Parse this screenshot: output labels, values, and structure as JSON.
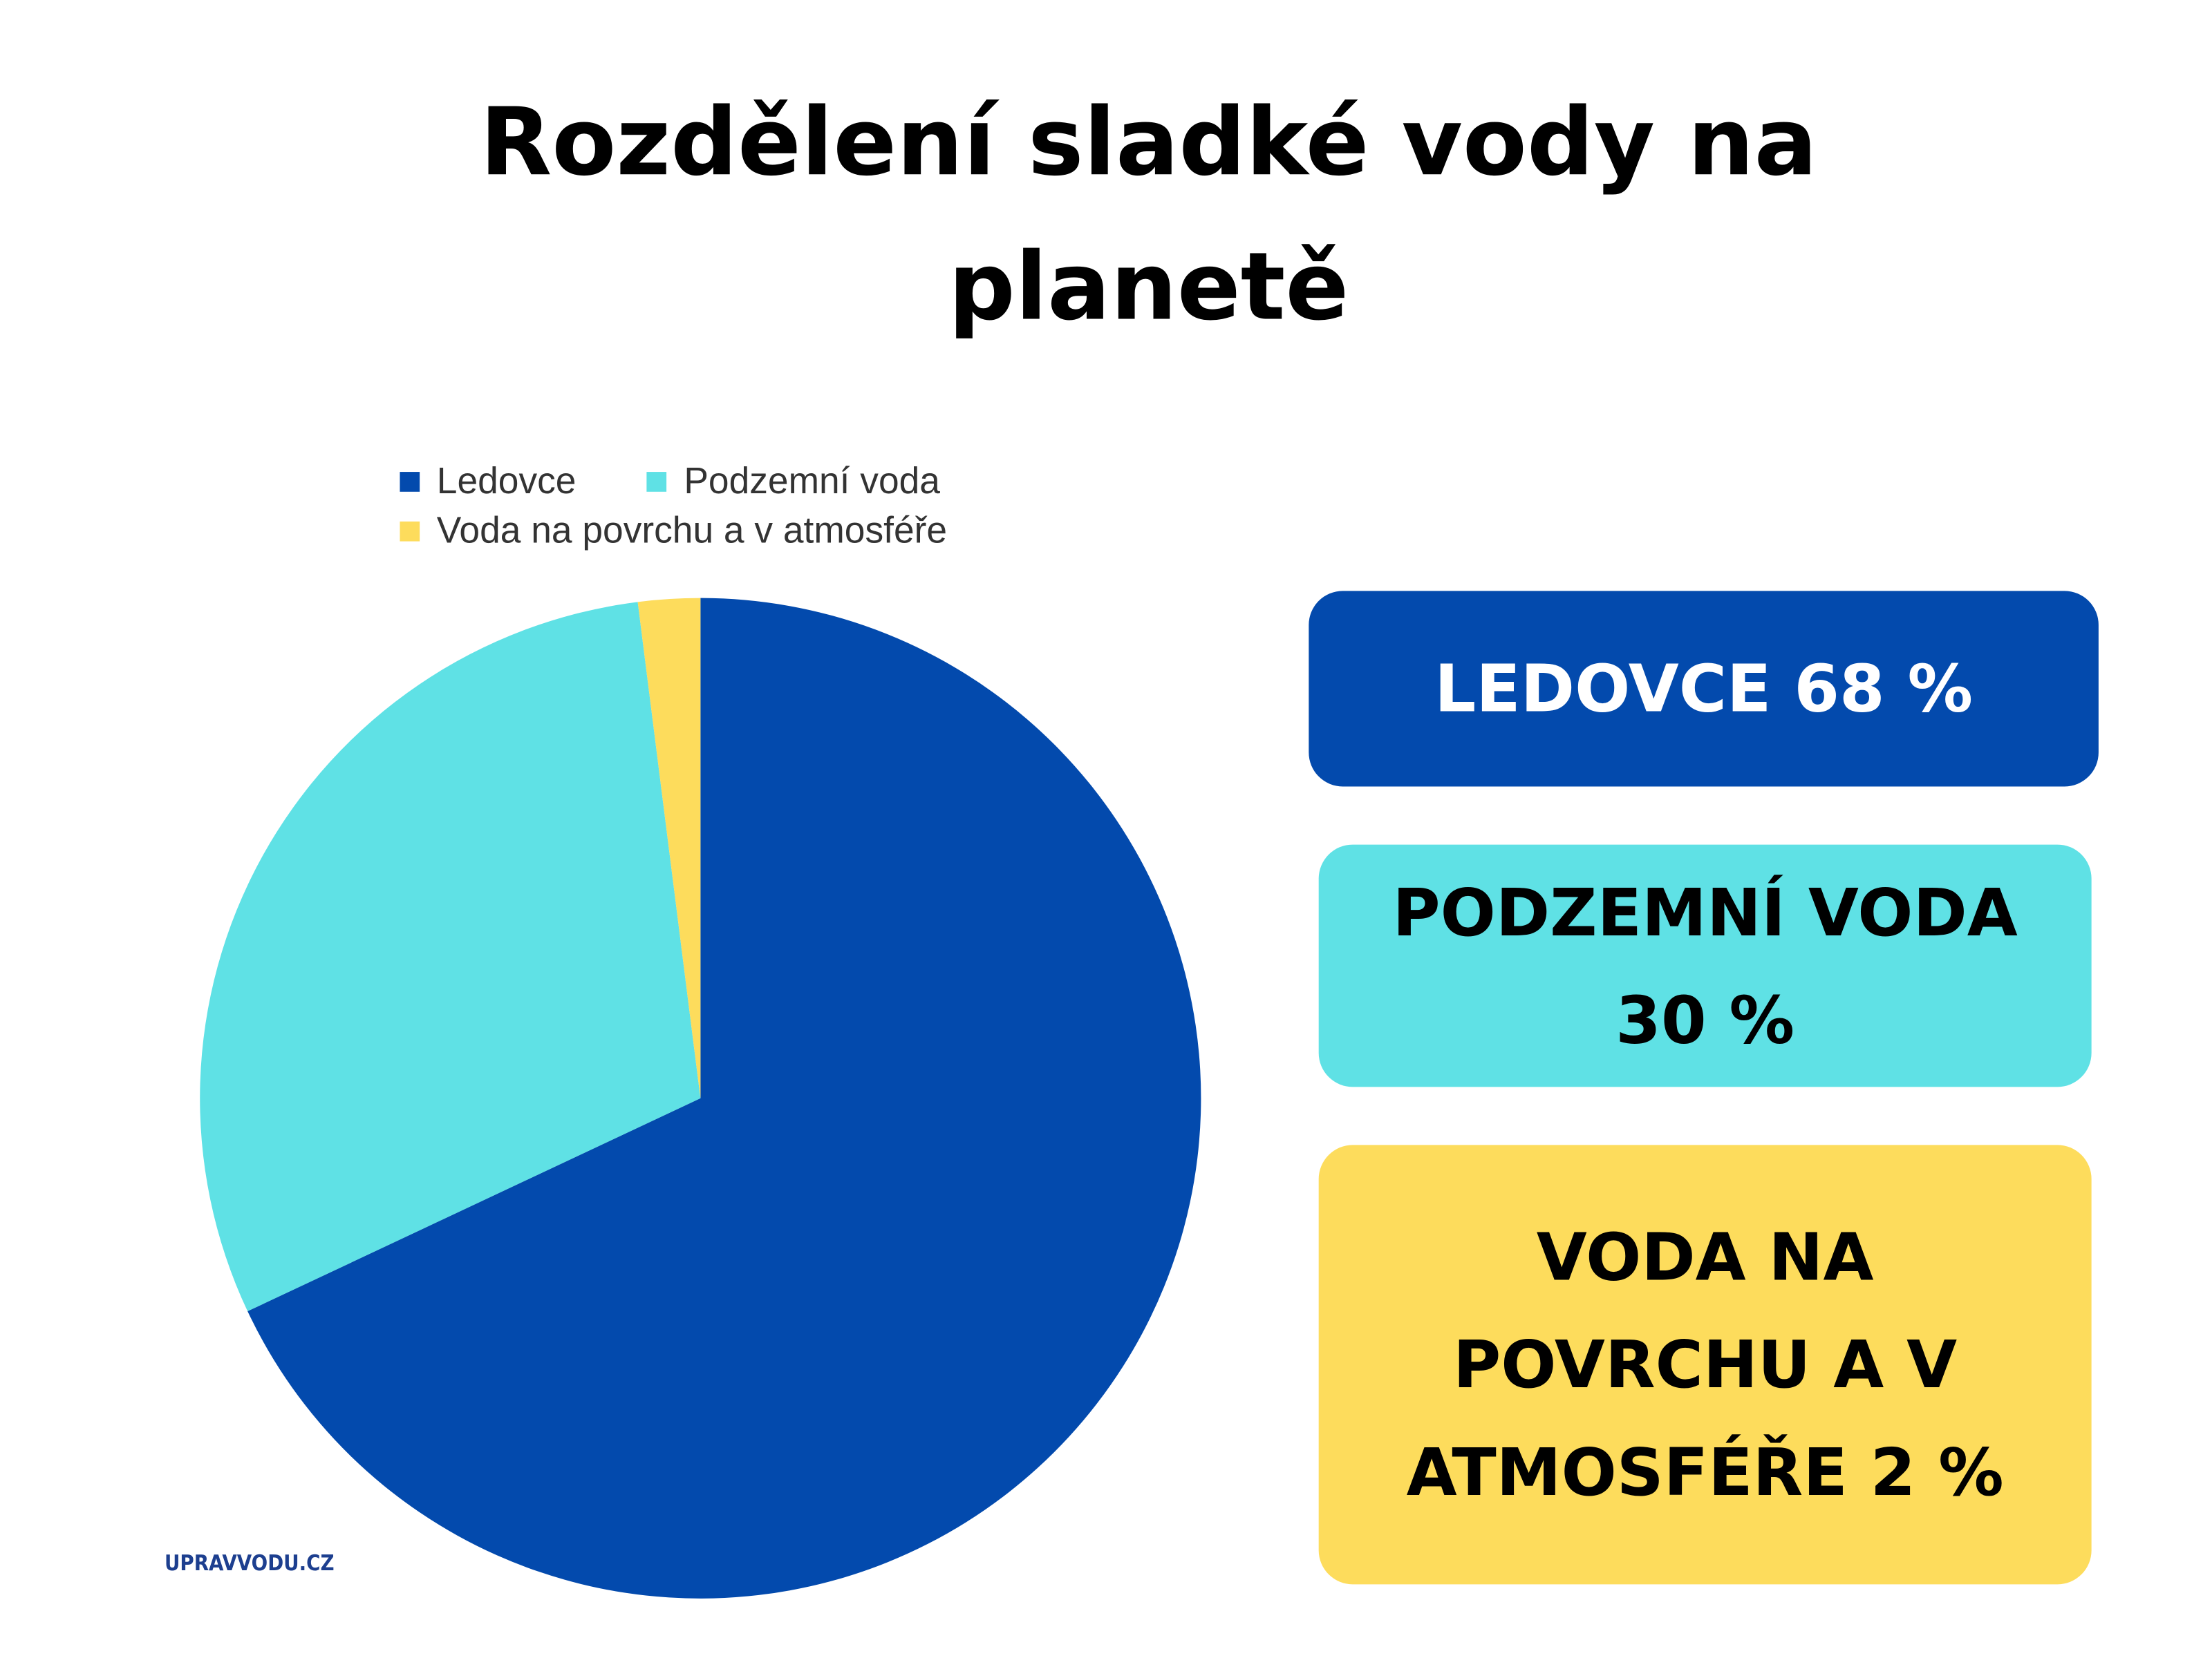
{
  "chart_data": {
    "type": "pie",
    "title": "Rozdělení sladké vody na planetě",
    "categories": [
      "Ledovce",
      "Podzemní voda",
      "Voda na povrchu a v atmosféře"
    ],
    "values": [
      68,
      30,
      2
    ],
    "value_labels": [
      "LEDOVCE 68 %",
      "PODZEMNÍ VODA 30 %",
      "VODA NA POVRCHU A V ATMOSFÉŘE 2 %"
    ],
    "colors": [
      "#034aad",
      "#5fe1e5",
      "#fddc5c"
    ]
  },
  "logo": "UPRAVVODU.CZ"
}
